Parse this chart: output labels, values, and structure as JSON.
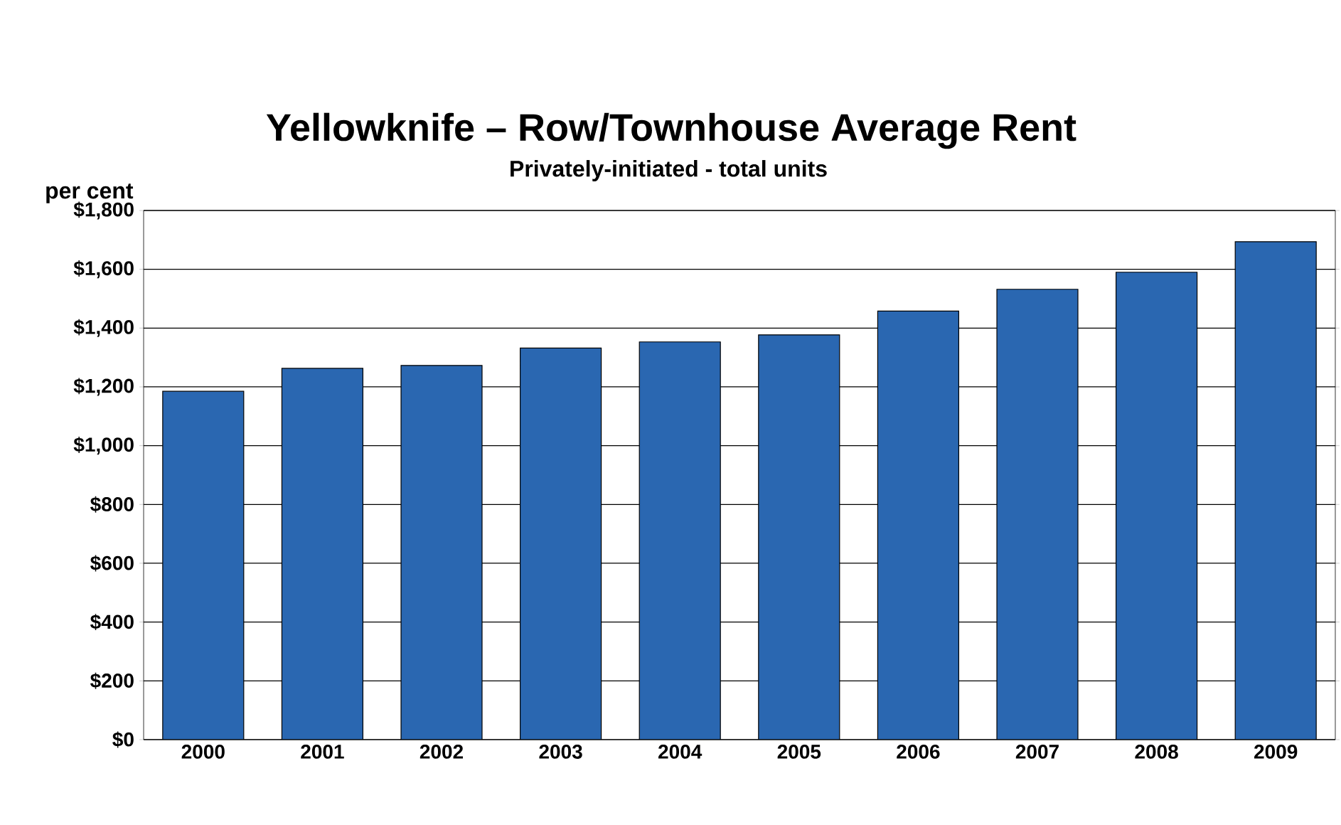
{
  "chart_data": {
    "type": "bar",
    "title": "Yellowknife – Row/Townhouse Average Rent",
    "subtitle": "Privately-initiated - total units",
    "ylabel": "per cent",
    "categories": [
      "2000",
      "2001",
      "2002",
      "2003",
      "2004",
      "2005",
      "2006",
      "2007",
      "2008",
      "2009"
    ],
    "values": [
      1185,
      1263,
      1273,
      1332,
      1353,
      1377,
      1458,
      1532,
      1590,
      1694
    ],
    "color": "#2a67b1",
    "ylim": [
      0,
      1800
    ],
    "yticks": [
      {
        "value": 0,
        "label": "$0"
      },
      {
        "value": 200,
        "label": "$200"
      },
      {
        "value": 400,
        "label": "$400"
      },
      {
        "value": 600,
        "label": "$600"
      },
      {
        "value": 800,
        "label": "$800"
      },
      {
        "value": 1000,
        "label": "$1,000"
      },
      {
        "value": 1200,
        "label": "$1,200"
      },
      {
        "value": 1400,
        "label": "$1,400"
      },
      {
        "value": 1600,
        "label": "$1,600"
      },
      {
        "value": 1800,
        "label": "$1,800"
      }
    ],
    "grid": "y"
  }
}
